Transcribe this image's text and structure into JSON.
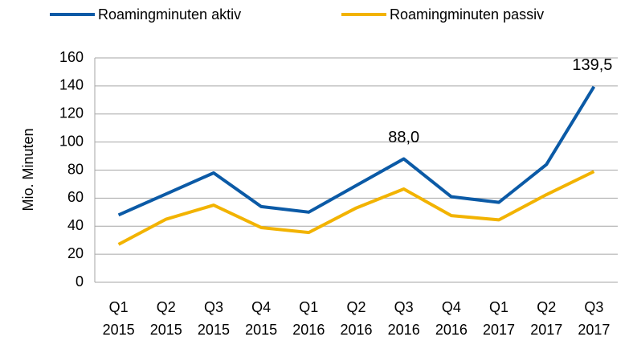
{
  "chart_data": {
    "type": "line",
    "categories": [
      [
        "Q1",
        "2015"
      ],
      [
        "Q2",
        "2015"
      ],
      [
        "Q3",
        "2015"
      ],
      [
        "Q4",
        "2015"
      ],
      [
        "Q1",
        "2016"
      ],
      [
        "Q2",
        "2016"
      ],
      [
        "Q3",
        "2016"
      ],
      [
        "Q4",
        "2016"
      ],
      [
        "Q1",
        "2017"
      ],
      [
        "Q2",
        "2017"
      ],
      [
        "Q3",
        "2017"
      ]
    ],
    "series": [
      {
        "name": "Roamingminuten aktiv",
        "color": "#0b5aa6",
        "values": [
          48,
          63,
          78,
          54,
          50,
          69,
          88,
          61,
          57,
          84,
          139.5
        ],
        "value_labels": [
          null,
          null,
          null,
          null,
          null,
          null,
          "88,0",
          null,
          null,
          null,
          "139,5"
        ]
      },
      {
        "name": "Roamingminuten passiv",
        "color": "#f2b300",
        "values": [
          27,
          45,
          55,
          39,
          35.5,
          53,
          66.5,
          47.5,
          44.5,
          62.5,
          79
        ]
      }
    ],
    "y_label": "Mio. Minuten",
    "ylim": [
      0,
      160
    ],
    "yticks": [
      0,
      20,
      40,
      60,
      80,
      100,
      120,
      140,
      160
    ],
    "grid": true,
    "legend": "top"
  }
}
